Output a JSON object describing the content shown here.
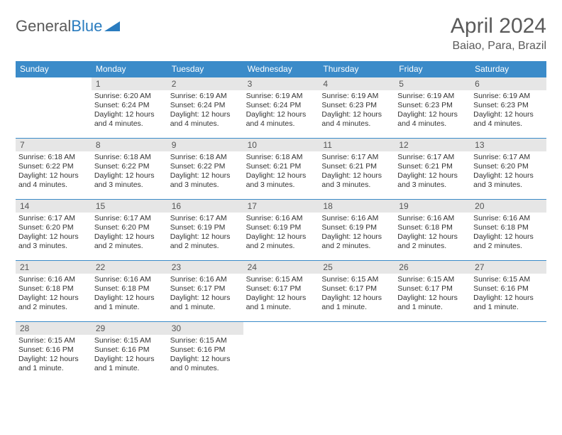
{
  "logo": {
    "text1": "General",
    "text2": "Blue"
  },
  "title": "April 2024",
  "location": "Baiao, Para, Brazil",
  "colors": {
    "header_bg": "#3b8bc9",
    "header_text": "#ffffff",
    "daynum_bg": "#e6e6e6",
    "border": "#3b8bc9",
    "title_color": "#5a5a5a"
  },
  "day_headers": [
    "Sunday",
    "Monday",
    "Tuesday",
    "Wednesday",
    "Thursday",
    "Friday",
    "Saturday"
  ],
  "weeks": [
    [
      {
        "blank": true
      },
      {
        "day": "1",
        "sunrise": "Sunrise: 6:20 AM",
        "sunset": "Sunset: 6:24 PM",
        "daylight": "Daylight: 12 hours and 4 minutes."
      },
      {
        "day": "2",
        "sunrise": "Sunrise: 6:19 AM",
        "sunset": "Sunset: 6:24 PM",
        "daylight": "Daylight: 12 hours and 4 minutes."
      },
      {
        "day": "3",
        "sunrise": "Sunrise: 6:19 AM",
        "sunset": "Sunset: 6:24 PM",
        "daylight": "Daylight: 12 hours and 4 minutes."
      },
      {
        "day": "4",
        "sunrise": "Sunrise: 6:19 AM",
        "sunset": "Sunset: 6:23 PM",
        "daylight": "Daylight: 12 hours and 4 minutes."
      },
      {
        "day": "5",
        "sunrise": "Sunrise: 6:19 AM",
        "sunset": "Sunset: 6:23 PM",
        "daylight": "Daylight: 12 hours and 4 minutes."
      },
      {
        "day": "6",
        "sunrise": "Sunrise: 6:19 AM",
        "sunset": "Sunset: 6:23 PM",
        "daylight": "Daylight: 12 hours and 4 minutes."
      }
    ],
    [
      {
        "day": "7",
        "sunrise": "Sunrise: 6:18 AM",
        "sunset": "Sunset: 6:22 PM",
        "daylight": "Daylight: 12 hours and 4 minutes."
      },
      {
        "day": "8",
        "sunrise": "Sunrise: 6:18 AM",
        "sunset": "Sunset: 6:22 PM",
        "daylight": "Daylight: 12 hours and 3 minutes."
      },
      {
        "day": "9",
        "sunrise": "Sunrise: 6:18 AM",
        "sunset": "Sunset: 6:22 PM",
        "daylight": "Daylight: 12 hours and 3 minutes."
      },
      {
        "day": "10",
        "sunrise": "Sunrise: 6:18 AM",
        "sunset": "Sunset: 6:21 PM",
        "daylight": "Daylight: 12 hours and 3 minutes."
      },
      {
        "day": "11",
        "sunrise": "Sunrise: 6:17 AM",
        "sunset": "Sunset: 6:21 PM",
        "daylight": "Daylight: 12 hours and 3 minutes."
      },
      {
        "day": "12",
        "sunrise": "Sunrise: 6:17 AM",
        "sunset": "Sunset: 6:21 PM",
        "daylight": "Daylight: 12 hours and 3 minutes."
      },
      {
        "day": "13",
        "sunrise": "Sunrise: 6:17 AM",
        "sunset": "Sunset: 6:20 PM",
        "daylight": "Daylight: 12 hours and 3 minutes."
      }
    ],
    [
      {
        "day": "14",
        "sunrise": "Sunrise: 6:17 AM",
        "sunset": "Sunset: 6:20 PM",
        "daylight": "Daylight: 12 hours and 3 minutes."
      },
      {
        "day": "15",
        "sunrise": "Sunrise: 6:17 AM",
        "sunset": "Sunset: 6:20 PM",
        "daylight": "Daylight: 12 hours and 2 minutes."
      },
      {
        "day": "16",
        "sunrise": "Sunrise: 6:17 AM",
        "sunset": "Sunset: 6:19 PM",
        "daylight": "Daylight: 12 hours and 2 minutes."
      },
      {
        "day": "17",
        "sunrise": "Sunrise: 6:16 AM",
        "sunset": "Sunset: 6:19 PM",
        "daylight": "Daylight: 12 hours and 2 minutes."
      },
      {
        "day": "18",
        "sunrise": "Sunrise: 6:16 AM",
        "sunset": "Sunset: 6:19 PM",
        "daylight": "Daylight: 12 hours and 2 minutes."
      },
      {
        "day": "19",
        "sunrise": "Sunrise: 6:16 AM",
        "sunset": "Sunset: 6:18 PM",
        "daylight": "Daylight: 12 hours and 2 minutes."
      },
      {
        "day": "20",
        "sunrise": "Sunrise: 6:16 AM",
        "sunset": "Sunset: 6:18 PM",
        "daylight": "Daylight: 12 hours and 2 minutes."
      }
    ],
    [
      {
        "day": "21",
        "sunrise": "Sunrise: 6:16 AM",
        "sunset": "Sunset: 6:18 PM",
        "daylight": "Daylight: 12 hours and 2 minutes."
      },
      {
        "day": "22",
        "sunrise": "Sunrise: 6:16 AM",
        "sunset": "Sunset: 6:18 PM",
        "daylight": "Daylight: 12 hours and 1 minute."
      },
      {
        "day": "23",
        "sunrise": "Sunrise: 6:16 AM",
        "sunset": "Sunset: 6:17 PM",
        "daylight": "Daylight: 12 hours and 1 minute."
      },
      {
        "day": "24",
        "sunrise": "Sunrise: 6:15 AM",
        "sunset": "Sunset: 6:17 PM",
        "daylight": "Daylight: 12 hours and 1 minute."
      },
      {
        "day": "25",
        "sunrise": "Sunrise: 6:15 AM",
        "sunset": "Sunset: 6:17 PM",
        "daylight": "Daylight: 12 hours and 1 minute."
      },
      {
        "day": "26",
        "sunrise": "Sunrise: 6:15 AM",
        "sunset": "Sunset: 6:17 PM",
        "daylight": "Daylight: 12 hours and 1 minute."
      },
      {
        "day": "27",
        "sunrise": "Sunrise: 6:15 AM",
        "sunset": "Sunset: 6:16 PM",
        "daylight": "Daylight: 12 hours and 1 minute."
      }
    ],
    [
      {
        "day": "28",
        "sunrise": "Sunrise: 6:15 AM",
        "sunset": "Sunset: 6:16 PM",
        "daylight": "Daylight: 12 hours and 1 minute."
      },
      {
        "day": "29",
        "sunrise": "Sunrise: 6:15 AM",
        "sunset": "Sunset: 6:16 PM",
        "daylight": "Daylight: 12 hours and 1 minute."
      },
      {
        "day": "30",
        "sunrise": "Sunrise: 6:15 AM",
        "sunset": "Sunset: 6:16 PM",
        "daylight": "Daylight: 12 hours and 0 minutes."
      },
      {
        "blank": true
      },
      {
        "blank": true
      },
      {
        "blank": true
      },
      {
        "blank": true
      }
    ]
  ]
}
